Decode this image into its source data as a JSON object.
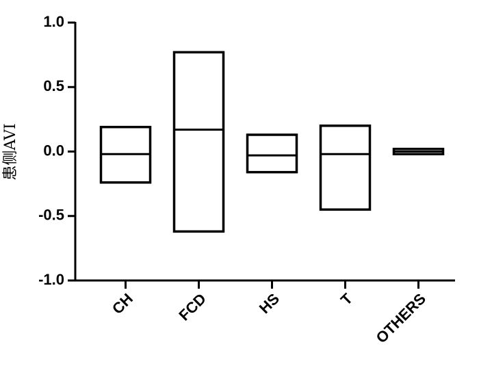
{
  "chart_data": {
    "type": "floating-bar",
    "y_label": "患侧AVI",
    "categories": [
      "CH",
      "FCD",
      "HS",
      "T",
      "OTHERS"
    ],
    "low": [
      -0.24,
      -0.62,
      -0.16,
      -0.45,
      -0.02
    ],
    "high": [
      0.19,
      0.77,
      0.13,
      0.2,
      0.02
    ],
    "mid": [
      -0.02,
      0.17,
      -0.03,
      -0.02,
      0.0
    ],
    "color": "#000000",
    "ylim": [
      -1.0,
      1.0
    ],
    "yticks": [
      {
        "value": 1.0,
        "label": "1.0"
      },
      {
        "value": 0.5,
        "label": "0.5"
      },
      {
        "value": 0.0,
        "label": "0.0"
      },
      {
        "value": -0.5,
        "label": "-0.5"
      },
      {
        "value": -1.0,
        "label": "-1.0"
      }
    ]
  }
}
